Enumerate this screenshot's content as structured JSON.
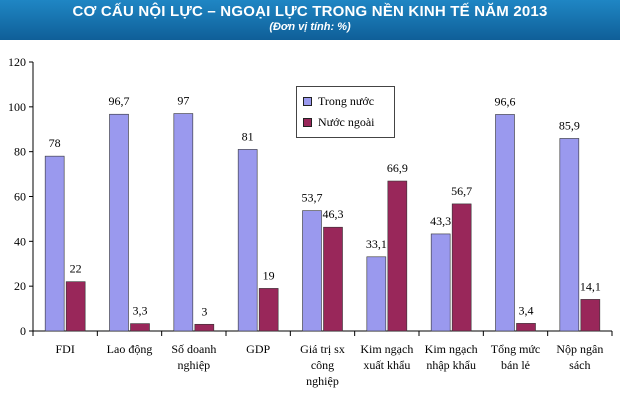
{
  "header": {
    "title": "CƠ CẤU NỘI LỰC – NGOẠI LỰC TRONG NỀN KINH TẾ NĂM 2013",
    "subtitle": "(Đơn vị tính: %)"
  },
  "colors": {
    "domestic": "#9a99ee",
    "foreign": "#99275a",
    "header_top": "#1f86c4",
    "header_bottom": "#0f5f98"
  },
  "chart_data": {
    "type": "bar",
    "title": "CƠ CẤU NỘI LỰC – NGOẠI LỰC TRONG NỀN KINH TẾ NĂM 2013",
    "subtitle": "(Đơn vị tính: %)",
    "categories": [
      [
        "FDI"
      ],
      [
        "Lao động"
      ],
      [
        "Số doanh",
        "nghiệp"
      ],
      [
        "GDP"
      ],
      [
        "Giá trị sx",
        "công",
        "nghiệp"
      ],
      [
        "Kim ngạch",
        "xuất khẩu"
      ],
      [
        "Kim ngạch",
        "nhập khẩu"
      ],
      [
        "Tổng mức",
        "bán lẻ"
      ],
      [
        "Nộp ngân",
        "sách"
      ]
    ],
    "series": [
      {
        "name": "Trong nước",
        "values": [
          78,
          96.7,
          97,
          81,
          53.7,
          33.1,
          43.3,
          96.6,
          85.9
        ],
        "labels": [
          "78",
          "96,7",
          "97",
          "81",
          "53,7",
          "33,1",
          "43,3",
          "96,6",
          "85,9"
        ]
      },
      {
        "name": "Nước ngoài",
        "values": [
          22,
          3.3,
          3,
          19,
          46.3,
          66.9,
          56.7,
          3.4,
          14.1
        ],
        "labels": [
          "22",
          "3,3",
          "3",
          "19",
          "46,3",
          "66,9",
          "56,7",
          "3,4",
          "14,1"
        ]
      }
    ],
    "ylim": [
      0,
      120
    ],
    "yticks": [
      0,
      20,
      40,
      60,
      80,
      100,
      120
    ],
    "grid": false,
    "legend_position": "top-center"
  }
}
